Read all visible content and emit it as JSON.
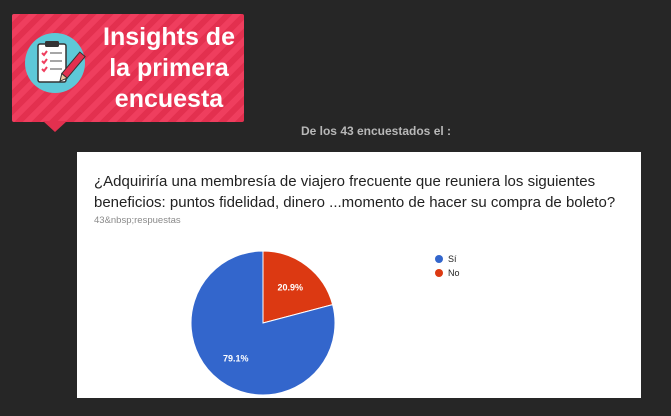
{
  "header": {
    "badge_title": "Insights de\nla primera\nencuesta",
    "badge_color": "#ef3e5e",
    "badge_icon": "clipboard-checklist-icon"
  },
  "subtitle": "De los 43 encuestados el :",
  "card": {
    "question": "¿Adquiriría una membresía de viajero frecuente que reuniera los siguientes beneficios: puntos fidelidad, dinero ...momento de hacer su compra de boleto?",
    "responses": "43&nbsp;respuestas"
  },
  "chart_data": {
    "type": "pie",
    "categories": [
      "Sí",
      "No"
    ],
    "values": [
      79.1,
      20.9
    ],
    "colors": [
      "#3366cc",
      "#dc3912"
    ],
    "labels": [
      "79.1%",
      "20.9%"
    ],
    "legend_position": "right"
  }
}
